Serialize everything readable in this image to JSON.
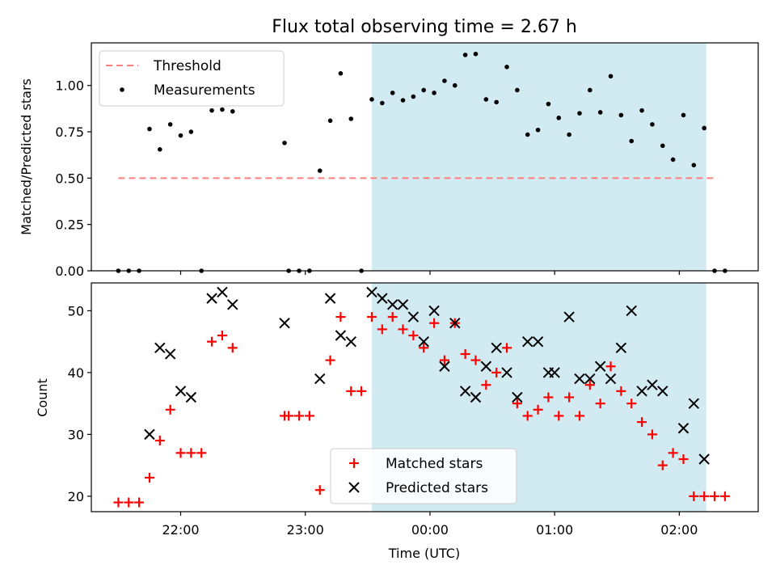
{
  "chart_data": [
    {
      "type": "scatter",
      "title": "Flux total observing time = 2.67 h",
      "xlabel": "",
      "ylabel": "Matched/Predicted stars",
      "ylim": [
        0,
        1.23
      ],
      "yticks": [
        "0.00",
        "0.25",
        "0.50",
        "0.75",
        "1.00"
      ],
      "ytick_values": [
        0,
        0.25,
        0.5,
        0.75,
        1.0
      ],
      "xlim": [
        "21:17",
        "02:38"
      ],
      "grid": false,
      "legend_position": "top-left",
      "threshold": {
        "name": "Threshold",
        "y": 0.5,
        "x_start": "21:30",
        "x_end": "02:18",
        "color": "#ff7f7f",
        "style": "dashed"
      },
      "highlight_span": {
        "x_start": "23:32",
        "x_end": "02:13",
        "color": "#add8e6"
      },
      "series": [
        {
          "name": "Measurements",
          "color": "#000000",
          "points": [
            [
              "21:30",
              0.0
            ],
            [
              "21:35",
              0.0
            ],
            [
              "21:40",
              0.0
            ],
            [
              "21:45",
              0.765
            ],
            [
              "21:50",
              0.655
            ],
            [
              "21:55",
              0.79
            ],
            [
              "22:00",
              0.73
            ],
            [
              "22:05",
              0.75
            ],
            [
              "22:10",
              0.0
            ],
            [
              "22:15",
              0.865
            ],
            [
              "22:20",
              0.87
            ],
            [
              "22:25",
              0.86
            ],
            [
              "22:50",
              0.69
            ],
            [
              "22:52",
              0.0
            ],
            [
              "22:57",
              0.0
            ],
            [
              "23:02",
              0.0
            ],
            [
              "23:07",
              0.54
            ],
            [
              "23:12",
              0.81
            ],
            [
              "23:17",
              1.065
            ],
            [
              "23:22",
              0.82
            ],
            [
              "23:27",
              0.0
            ],
            [
              "23:32",
              0.925
            ],
            [
              "23:37",
              0.905
            ],
            [
              "23:42",
              0.96
            ],
            [
              "23:47",
              0.92
            ],
            [
              "23:52",
              0.94
            ],
            [
              "23:57",
              0.975
            ],
            [
              "00:02",
              0.96
            ],
            [
              "00:07",
              1.025
            ],
            [
              "00:12",
              1.0
            ],
            [
              "00:17",
              1.165
            ],
            [
              "00:22",
              1.17
            ],
            [
              "00:27",
              0.925
            ],
            [
              "00:32",
              0.91
            ],
            [
              "00:37",
              1.1
            ],
            [
              "00:42",
              0.975
            ],
            [
              "00:47",
              0.735
            ],
            [
              "00:52",
              0.76
            ],
            [
              "00:57",
              0.9
            ],
            [
              "01:02",
              0.825
            ],
            [
              "01:07",
              0.735
            ],
            [
              "01:12",
              0.85
            ],
            [
              "01:17",
              0.975
            ],
            [
              "01:22",
              0.855
            ],
            [
              "01:27",
              1.05
            ],
            [
              "01:32",
              0.84
            ],
            [
              "01:37",
              0.7
            ],
            [
              "01:42",
              0.865
            ],
            [
              "01:47",
              0.79
            ],
            [
              "01:52",
              0.675
            ],
            [
              "01:57",
              0.6
            ],
            [
              "02:02",
              0.84
            ],
            [
              "02:07",
              0.57
            ],
            [
              "02:12",
              0.77
            ],
            [
              "02:17",
              0.0
            ],
            [
              "02:22",
              0.0
            ]
          ]
        }
      ]
    },
    {
      "type": "scatter",
      "xlabel": "Time (UTC)",
      "ylabel": "Count",
      "ylim": [
        17.5,
        54.5
      ],
      "yticks": [
        "20",
        "30",
        "40",
        "50"
      ],
      "ytick_values": [
        20,
        30,
        40,
        50
      ],
      "xlim": [
        "21:17",
        "02:38"
      ],
      "xticks": [
        "22:00",
        "23:00",
        "00:00",
        "01:00",
        "02:00"
      ],
      "grid": false,
      "legend_position": "bottom-center",
      "highlight_span": {
        "x_start": "23:32",
        "x_end": "02:13",
        "color": "#add8e6"
      },
      "series": [
        {
          "name": "Matched stars",
          "color": "#ff0000",
          "marker": "plus",
          "points": [
            [
              "21:30",
              19
            ],
            [
              "21:35",
              19
            ],
            [
              "21:40",
              19
            ],
            [
              "21:45",
              23
            ],
            [
              "21:50",
              29
            ],
            [
              "21:55",
              34
            ],
            [
              "22:00",
              27
            ],
            [
              "22:05",
              27
            ],
            [
              "22:10",
              27
            ],
            [
              "22:15",
              45
            ],
            [
              "22:20",
              46
            ],
            [
              "22:25",
              44
            ],
            [
              "22:50",
              33
            ],
            [
              "22:52",
              33
            ],
            [
              "22:57",
              33
            ],
            [
              "23:02",
              33
            ],
            [
              "23:07",
              21
            ],
            [
              "23:12",
              42
            ],
            [
              "23:17",
              49
            ],
            [
              "23:22",
              37
            ],
            [
              "23:27",
              37
            ],
            [
              "23:32",
              49
            ],
            [
              "23:37",
              47
            ],
            [
              "23:42",
              49
            ],
            [
              "23:47",
              47
            ],
            [
              "23:52",
              46
            ],
            [
              "23:57",
              44
            ],
            [
              "00:02",
              48
            ],
            [
              "00:07",
              42
            ],
            [
              "00:12",
              48
            ],
            [
              "00:17",
              43
            ],
            [
              "00:22",
              42
            ],
            [
              "00:27",
              38
            ],
            [
              "00:32",
              40
            ],
            [
              "00:37",
              44
            ],
            [
              "00:42",
              35
            ],
            [
              "00:47",
              33
            ],
            [
              "00:52",
              34
            ],
            [
              "00:57",
              36
            ],
            [
              "01:02",
              33
            ],
            [
              "01:07",
              36
            ],
            [
              "01:12",
              33
            ],
            [
              "01:17",
              38
            ],
            [
              "01:22",
              35
            ],
            [
              "01:27",
              41
            ],
            [
              "01:32",
              37
            ],
            [
              "01:37",
              35
            ],
            [
              "01:42",
              32
            ],
            [
              "01:47",
              30
            ],
            [
              "01:52",
              25
            ],
            [
              "01:57",
              27
            ],
            [
              "02:02",
              26
            ],
            [
              "02:07",
              20
            ],
            [
              "02:12",
              20
            ],
            [
              "02:17",
              20
            ],
            [
              "02:22",
              20
            ]
          ]
        },
        {
          "name": "Predicted stars",
          "color": "#000000",
          "marker": "x",
          "points": [
            [
              "21:45",
              30
            ],
            [
              "21:50",
              44
            ],
            [
              "21:55",
              43
            ],
            [
              "22:00",
              37
            ],
            [
              "22:05",
              36
            ],
            [
              "22:15",
              52
            ],
            [
              "22:20",
              53
            ],
            [
              "22:25",
              51
            ],
            [
              "22:50",
              48
            ],
            [
              "23:07",
              39
            ],
            [
              "23:12",
              52
            ],
            [
              "23:17",
              46
            ],
            [
              "23:22",
              45
            ],
            [
              "23:32",
              53
            ],
            [
              "23:37",
              52
            ],
            [
              "23:42",
              51
            ],
            [
              "23:47",
              51
            ],
            [
              "23:52",
              49
            ],
            [
              "23:57",
              45
            ],
            [
              "00:02",
              50
            ],
            [
              "00:07",
              41
            ],
            [
              "00:12",
              48
            ],
            [
              "00:17",
              37
            ],
            [
              "00:22",
              36
            ],
            [
              "00:27",
              41
            ],
            [
              "00:32",
              44
            ],
            [
              "00:37",
              40
            ],
            [
              "00:42",
              36
            ],
            [
              "00:47",
              45
            ],
            [
              "00:52",
              45
            ],
            [
              "00:57",
              40
            ],
            [
              "01:00",
              40
            ],
            [
              "01:07",
              49
            ],
            [
              "01:12",
              39
            ],
            [
              "01:17",
              39
            ],
            [
              "01:22",
              41
            ],
            [
              "01:27",
              39
            ],
            [
              "01:32",
              44
            ],
            [
              "01:37",
              50
            ],
            [
              "01:42",
              37
            ],
            [
              "01:47",
              38
            ],
            [
              "01:52",
              37
            ],
            [
              "02:02",
              31
            ],
            [
              "02:07",
              35
            ],
            [
              "02:12",
              26
            ]
          ]
        }
      ]
    }
  ]
}
